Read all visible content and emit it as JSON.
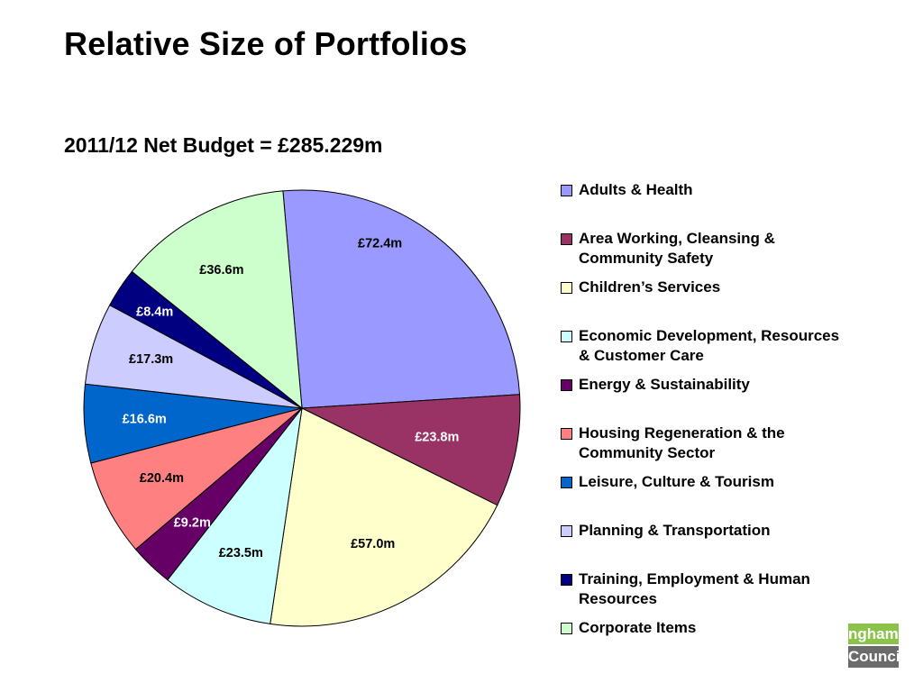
{
  "title": "Relative Size of Portfolios",
  "subtitle": "2011/12 Net Budget = £285.229m",
  "logo": {
    "line1": "ngham",
    "line2": "Council"
  },
  "chart_data": {
    "type": "pie",
    "title": "2011/12 Net Budget = £285.229m",
    "legend_position": "right",
    "slices": [
      {
        "name": "Adults & Health",
        "value": 72.4,
        "label": "£72.4m",
        "color": "#9999FF",
        "label_color": "#000000"
      },
      {
        "name": "Area Working, Cleansing & Community Safety",
        "value": 23.8,
        "label": "£23.8m",
        "color": "#993366",
        "label_color": "#FFFFFF"
      },
      {
        "name": "Children’s Services",
        "value": 57.0,
        "label": "£57.0m",
        "color": "#FFFFCC",
        "label_color": "#000000"
      },
      {
        "name": "Economic Development, Resources & Customer Care",
        "value": 23.5,
        "label": "£23.5m",
        "color": "#CCFFFF",
        "label_color": "#000000"
      },
      {
        "name": "Energy & Sustainability",
        "value": 9.2,
        "label": "£9.2m",
        "color": "#660066",
        "label_color": "#FFFFFF"
      },
      {
        "name": "Housing Regeneration & the Community Sector",
        "value": 20.4,
        "label": "£20.4m",
        "color": "#FF8080",
        "label_color": "#000000"
      },
      {
        "name": "Leisure, Culture & Tourism",
        "value": 16.6,
        "label": "£16.6m",
        "color": "#0066CC",
        "label_color": "#FFFFFF"
      },
      {
        "name": "Planning & Transportation",
        "value": 17.3,
        "label": "£17.3m",
        "color": "#CCCCFF",
        "label_color": "#000000"
      },
      {
        "name": "Training, Employment & Human Resources",
        "value": 8.4,
        "label": "£8.4m",
        "color": "#000080",
        "label_color": "#FFFFFF"
      },
      {
        "name": "Corporate Items",
        "value": 36.6,
        "label": "£36.6m",
        "color": "#CCFFCC",
        "label_color": "#000000"
      }
    ]
  }
}
